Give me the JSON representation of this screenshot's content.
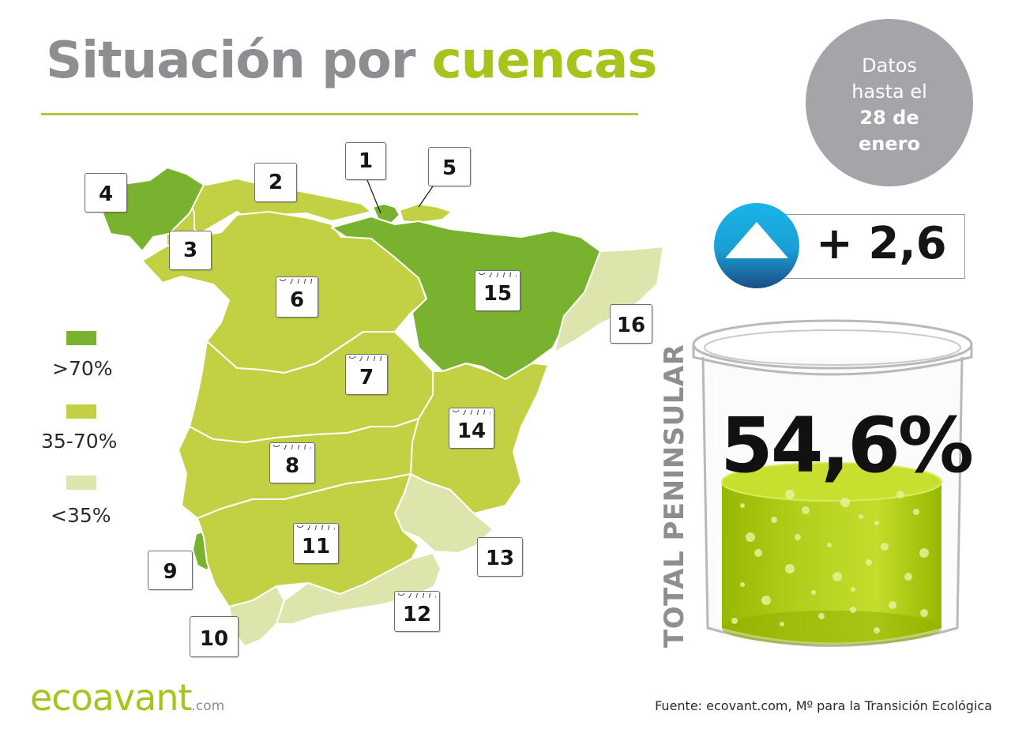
{
  "title": {
    "prefix": "Situación por",
    "accent": "cuencas"
  },
  "date_note": {
    "line1": "Datos",
    "line2": "hasta el",
    "line3": "28 de",
    "line4": "enero"
  },
  "colors": {
    "high": "#79b22f",
    "mid": "#c2d144",
    "low": "#dde5ad",
    "accent": "#a8c31c",
    "gray": "#8c8e91"
  },
  "legend": [
    {
      "label": ">70%",
      "color": "#79b22f"
    },
    {
      "label": "35-70%",
      "color": "#c2d144"
    },
    {
      "label": "<35%",
      "color": "#dde5ad"
    }
  ],
  "basins": [
    {
      "id": "1",
      "level": "high",
      "reservoir_icon": false
    },
    {
      "id": "2",
      "level": "mid",
      "reservoir_icon": false
    },
    {
      "id": "3",
      "level": "mid",
      "reservoir_icon": false
    },
    {
      "id": "4",
      "level": "high",
      "reservoir_icon": false
    },
    {
      "id": "5",
      "level": "mid",
      "reservoir_icon": false
    },
    {
      "id": "6",
      "level": "mid",
      "reservoir_icon": true
    },
    {
      "id": "7",
      "level": "mid",
      "reservoir_icon": true
    },
    {
      "id": "8",
      "level": "mid",
      "reservoir_icon": true
    },
    {
      "id": "9",
      "level": "high",
      "reservoir_icon": false
    },
    {
      "id": "10",
      "level": "low",
      "reservoir_icon": false
    },
    {
      "id": "11",
      "level": "mid",
      "reservoir_icon": true
    },
    {
      "id": "12",
      "level": "low",
      "reservoir_icon": true
    },
    {
      "id": "13",
      "level": "low",
      "reservoir_icon": false
    },
    {
      "id": "14",
      "level": "mid",
      "reservoir_icon": true
    },
    {
      "id": "15",
      "level": "high",
      "reservoir_icon": true
    },
    {
      "id": "16",
      "level": "low",
      "reservoir_icon": false
    }
  ],
  "change": {
    "value": "+ 2,6",
    "direction_icon": "up-arrow-icon"
  },
  "total": {
    "label": "TOTAL PENINSULAR",
    "value": "54,6%",
    "fill_fraction": 0.546
  },
  "brand": {
    "name": "ecoavant",
    "suffix": ".com"
  },
  "source": "Fuente: ecovant.com, Mº para la Transición Ecológica"
}
